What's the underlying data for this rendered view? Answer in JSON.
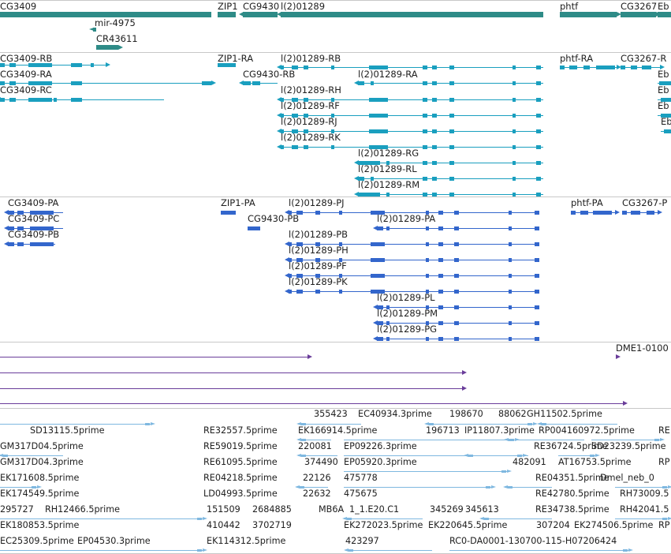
{
  "colors": {
    "gene": "#2e8b87",
    "transcript": "#1a9fbf",
    "protein": "#3366cc",
    "alignment": "#6a3d9a",
    "est": "#7fb8e0",
    "separator": "#c8c8c8"
  },
  "tracks": {
    "genes": {
      "items": [
        {
          "label": "CG3409",
          "icon": "gene-glyph"
        },
        {
          "label": "ZIP1",
          "icon": "gene-glyph"
        },
        {
          "label": "CG9430",
          "icon": "gene-glyph"
        },
        {
          "label": "l(2)01289",
          "icon": "gene-glyph"
        },
        {
          "label": "phtf",
          "icon": "gene-glyph"
        },
        {
          "label": "CG3267",
          "icon": "gene-glyph"
        },
        {
          "label": "Eb",
          "icon": "gene-glyph"
        },
        {
          "label": "mir-4975",
          "icon": "gene-glyph"
        },
        {
          "label": "CR43611",
          "icon": "gene-glyph"
        }
      ]
    },
    "transcripts": {
      "items": [
        {
          "label": "CG3409-RB"
        },
        {
          "label": "CG3409-RA"
        },
        {
          "label": "CG3409-RC"
        },
        {
          "label": "ZIP1-RA"
        },
        {
          "label": "CG9430-RB"
        },
        {
          "label": "l(2)01289-RB"
        },
        {
          "label": "l(2)01289-RA"
        },
        {
          "label": "l(2)01289-RH"
        },
        {
          "label": "l(2)01289-RF"
        },
        {
          "label": "l(2)01289-RJ"
        },
        {
          "label": "l(2)01289-RK"
        },
        {
          "label": "l(2)01289-RG"
        },
        {
          "label": "l(2)01289-RL"
        },
        {
          "label": "l(2)01289-RM"
        },
        {
          "label": "phtf-RA"
        },
        {
          "label": "CG3267-R"
        },
        {
          "label": "Eb"
        },
        {
          "label": "Eb"
        },
        {
          "label": "Eb"
        },
        {
          "label": "Eb"
        }
      ]
    },
    "proteins": {
      "items": [
        {
          "label": "CG3409-PA"
        },
        {
          "label": "CG3409-PC"
        },
        {
          "label": "CG3409-PB"
        },
        {
          "label": "ZIP1-PA"
        },
        {
          "label": "CG9430-PB"
        },
        {
          "label": "l(2)01289-PJ"
        },
        {
          "label": "l(2)01289-PA"
        },
        {
          "label": "l(2)01289-PB"
        },
        {
          "label": "l(2)01289-PH"
        },
        {
          "label": "l(2)01289-PF"
        },
        {
          "label": "l(2)01289-PK"
        },
        {
          "label": "l(2)01289-PL"
        },
        {
          "label": "l(2)01289-PM"
        },
        {
          "label": "l(2)01289-PG"
        },
        {
          "label": "phtf-PA"
        },
        {
          "label": "CG3267-P"
        }
      ]
    },
    "alignments": {
      "items": [
        {
          "label": "DME1-0100"
        }
      ]
    },
    "ests": {
      "items": [
        {
          "label": "355423"
        },
        {
          "label": "EC40934.3prime"
        },
        {
          "label": "198670"
        },
        {
          "label": "88062"
        },
        {
          "label": "GH11502.5prime"
        },
        {
          "label": "SD13115.5prime"
        },
        {
          "label": "RE32557.5prime"
        },
        {
          "label": "EK166914.5prime"
        },
        {
          "label": "196713"
        },
        {
          "label": "IP11807.3prime"
        },
        {
          "label": "RP004160972.5prime"
        },
        {
          "label": "RE"
        },
        {
          "label": "GM317D04.5prime"
        },
        {
          "label": "RE59019.5prime"
        },
        {
          "label": "220081"
        },
        {
          "label": "EP09226.3prime"
        },
        {
          "label": "RE36724.5prime"
        },
        {
          "label": "SD23239.5prime"
        },
        {
          "label": "GM317D04.3prime"
        },
        {
          "label": "RE61095.5prime"
        },
        {
          "label": "374490"
        },
        {
          "label": "EP05920.3prime"
        },
        {
          "label": "482091"
        },
        {
          "label": "AT16753.5prime"
        },
        {
          "label": "RP"
        },
        {
          "label": "EK171608.5prime"
        },
        {
          "label": "RE04218.5prime"
        },
        {
          "label": "22126"
        },
        {
          "label": "475778"
        },
        {
          "label": "RE04351.5prime"
        },
        {
          "label": "Dmel_neb_0"
        },
        {
          "label": "EK174549.5prime"
        },
        {
          "label": "LD04993.5prime"
        },
        {
          "label": "22632"
        },
        {
          "label": "475675"
        },
        {
          "label": "RE42780.5prime"
        },
        {
          "label": "RH73009.5"
        },
        {
          "label": "295727"
        },
        {
          "label": "RH12466.5prime"
        },
        {
          "label": "151509"
        },
        {
          "label": "2684885"
        },
        {
          "label": "MB6A"
        },
        {
          "label": "1_1.E20.C1"
        },
        {
          "label": "345269"
        },
        {
          "label": "345613"
        },
        {
          "label": "RE34738.5prime"
        },
        {
          "label": "RH42041.5"
        },
        {
          "label": "EK180853.5prime"
        },
        {
          "label": "410442"
        },
        {
          "label": "3702719"
        },
        {
          "label": "EK272023.5prime"
        },
        {
          "label": "EK220645.5prime"
        },
        {
          "label": "307204"
        },
        {
          "label": "EK274506.5prime"
        },
        {
          "label": "RP"
        },
        {
          "label": "EC25309.5prime"
        },
        {
          "label": "EP04530.3prime"
        },
        {
          "label": "EK114312.5prime"
        },
        {
          "label": "423297"
        },
        {
          "label": "RC0-DA0001-130700-115-H07206424"
        }
      ]
    }
  }
}
